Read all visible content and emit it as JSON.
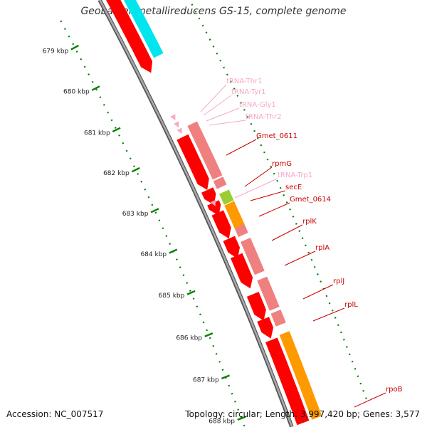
{
  "title": "Geobacter metallireducens GS-15, complete genome",
  "footer": {
    "accession": "Accession: NC_007517",
    "summary": "Topology: circular; Length: 3,997,420 bp; Genes: 3,577"
  },
  "colors": {
    "backbone": "#8c8c8c",
    "gene": "#ff0000",
    "cds": "#f08080",
    "trna": "#f7a8c8",
    "rrna": "#00e5ee",
    "misc": "#9acd32",
    "operon": "#ff9900",
    "ticks": "#008000"
  },
  "ticks": [
    {
      "label": "679 kbp"
    },
    {
      "label": "680 kbp"
    },
    {
      "label": "681 kbp"
    },
    {
      "label": "682 kbp"
    },
    {
      "label": "683 kbp"
    },
    {
      "label": "684 kbp"
    },
    {
      "label": "685 kbp"
    },
    {
      "label": "686 kbp"
    },
    {
      "label": "687 kbp"
    },
    {
      "label": "688 kbp"
    }
  ],
  "features": [
    {
      "name": "tRNA-Thr1",
      "type": "tRNA"
    },
    {
      "name": "tRNA-Tyr1",
      "type": "tRNA"
    },
    {
      "name": "tRNA-Gly1",
      "type": "tRNA"
    },
    {
      "name": "tRNA-Thr2",
      "type": "tRNA"
    },
    {
      "name": "Gmet_0611",
      "type": "gene"
    },
    {
      "name": "rpmG",
      "type": "gene"
    },
    {
      "name": "tRNA-Trp1",
      "type": "tRNA"
    },
    {
      "name": "secE",
      "type": "gene"
    },
    {
      "name": "Gmet_0614",
      "type": "gene"
    },
    {
      "name": "rplK",
      "type": "gene"
    },
    {
      "name": "rplA",
      "type": "gene"
    },
    {
      "name": "rplJ",
      "type": "gene"
    },
    {
      "name": "rplL",
      "type": "gene"
    },
    {
      "name": "rpoB",
      "type": "gene"
    }
  ]
}
